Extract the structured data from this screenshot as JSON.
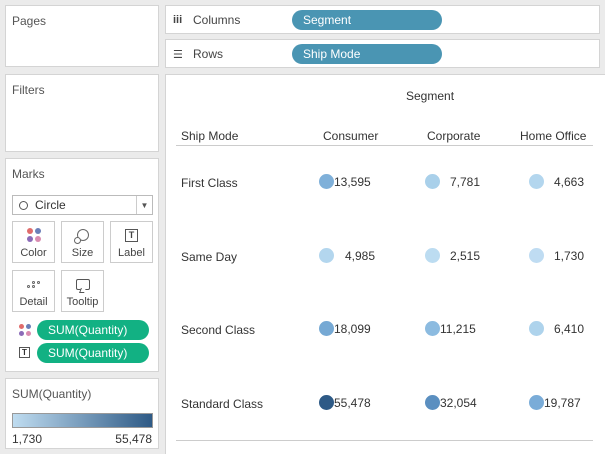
{
  "cards": {
    "pages": "Pages",
    "filters": "Filters",
    "marks": "Marks",
    "legend_title": "SUM(Quantity)"
  },
  "marks": {
    "type": "Circle",
    "buttons": {
      "color": "Color",
      "size": "Size",
      "label": "Label",
      "detail": "Detail",
      "tooltip": "Tooltip"
    },
    "fields": [
      "SUM(Quantity)",
      "SUM(Quantity)"
    ]
  },
  "legend": {
    "min": "1,730",
    "max": "55,478",
    "colors": [
      "#bfdcf0",
      "#2e5a86"
    ]
  },
  "shelves": {
    "columns_label": "Columns",
    "columns_pill": "Segment",
    "rows_label": "Rows",
    "rows_pill": "Ship Mode"
  },
  "view": {
    "column_title": "Segment",
    "row_header": "Ship Mode",
    "columns": [
      "Consumer",
      "Corporate",
      "Home Office"
    ],
    "rows": [
      {
        "label": "First Class",
        "values": [
          "13,595",
          "7,781",
          "4,663"
        ],
        "colors": [
          "#7fb0d9",
          "#a9d0ea",
          "#b3d6ee"
        ]
      },
      {
        "label": "Same Day",
        "values": [
          "4,985",
          "2,515",
          "1,730"
        ],
        "colors": [
          "#b3d6ee",
          "#bcdcf1",
          "#bfdcf2"
        ]
      },
      {
        "label": "Second Class",
        "values": [
          "18,099",
          "11,215",
          "6,410"
        ],
        "colors": [
          "#76a9d4",
          "#8cbbe0",
          "#aed3ec"
        ]
      },
      {
        "label": "Standard Class",
        "values": [
          "55,478",
          "32,054",
          "19,787"
        ],
        "colors": [
          "#2e5a86",
          "#5b8fc0",
          "#7aacd8"
        ]
      }
    ]
  }
}
